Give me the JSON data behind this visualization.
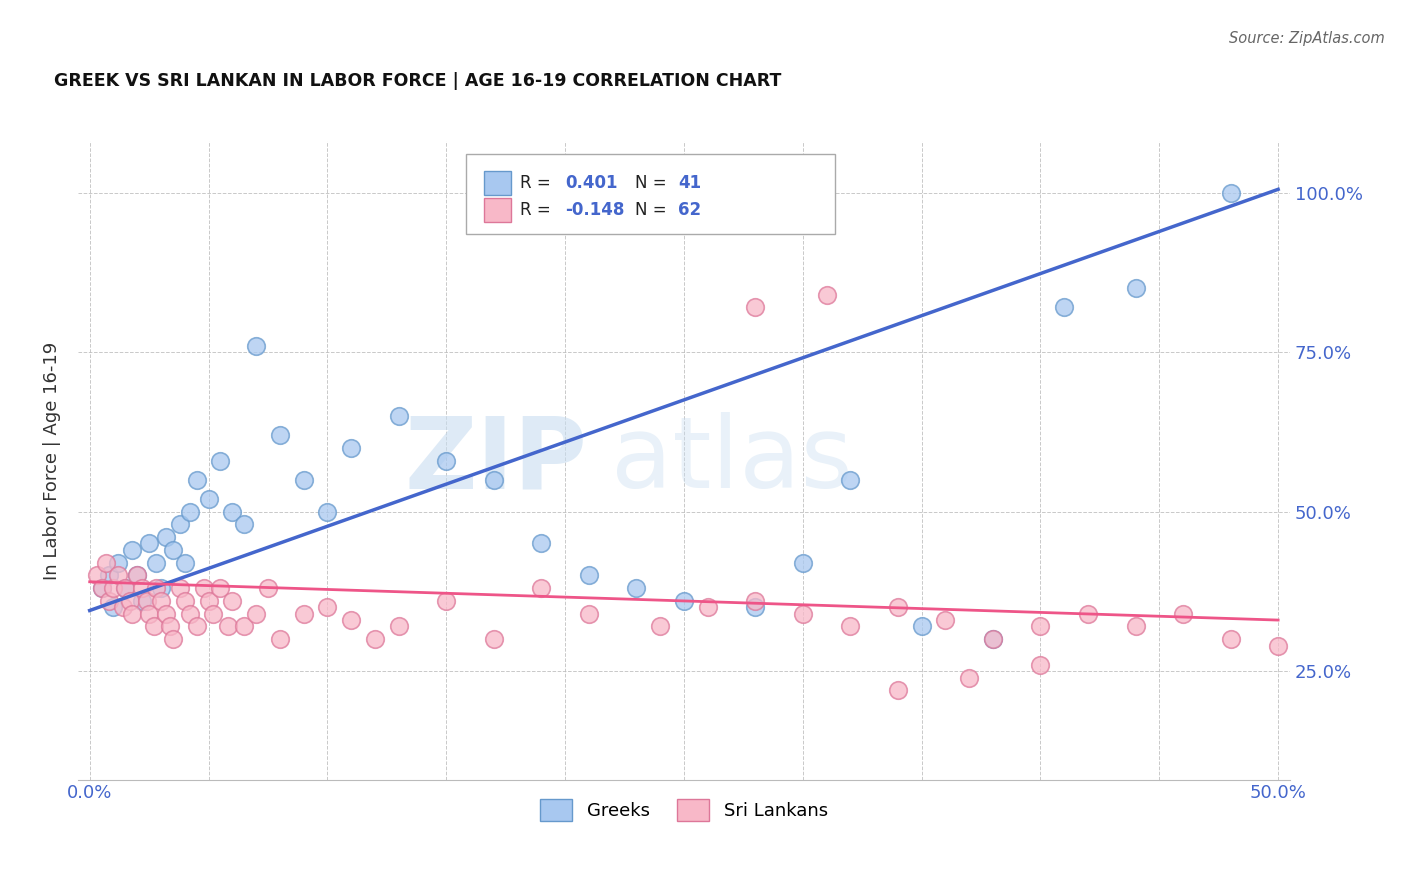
{
  "title": "GREEK VS SRI LANKAN IN LABOR FORCE | AGE 16-19 CORRELATION CHART",
  "source": "Source: ZipAtlas.com",
  "ylabel_label": "In Labor Force | Age 16-19",
  "xlim": [
    -0.005,
    0.505
  ],
  "ylim": [
    0.08,
    1.08
  ],
  "xticks": [
    0.0,
    0.05,
    0.1,
    0.15,
    0.2,
    0.25,
    0.3,
    0.35,
    0.4,
    0.45,
    0.5
  ],
  "xtick_labels": [
    "0.0%",
    "",
    "",
    "",
    "",
    "",
    "",
    "",
    "",
    "",
    "50.0%"
  ],
  "ytick_positions": [
    0.25,
    0.5,
    0.75,
    1.0
  ],
  "ytick_labels": [
    "25.0%",
    "50.0%",
    "75.0%",
    "100.0%"
  ],
  "greek_color": "#a8c8f0",
  "greek_edge_color": "#6699cc",
  "sri_color": "#f8b8c8",
  "sri_edge_color": "#dd7799",
  "blue_line_color": "#4466cc",
  "pink_line_color": "#ee5588",
  "R_greek": 0.401,
  "N_greek": 41,
  "R_sri": -0.148,
  "N_sri": 62,
  "legend_color": "#4466cc",
  "greek_x": [
    0.005,
    0.008,
    0.01,
    0.012,
    0.015,
    0.018,
    0.02,
    0.022,
    0.025,
    0.028,
    0.03,
    0.032,
    0.035,
    0.038,
    0.04,
    0.042,
    0.045,
    0.05,
    0.055,
    0.06,
    0.065,
    0.07,
    0.08,
    0.09,
    0.1,
    0.11,
    0.13,
    0.15,
    0.17,
    0.19,
    0.21,
    0.23,
    0.25,
    0.28,
    0.3,
    0.32,
    0.35,
    0.38,
    0.41,
    0.44,
    0.48
  ],
  "greek_y": [
    0.38,
    0.4,
    0.35,
    0.42,
    0.38,
    0.44,
    0.4,
    0.36,
    0.45,
    0.42,
    0.38,
    0.46,
    0.44,
    0.48,
    0.42,
    0.5,
    0.55,
    0.52,
    0.58,
    0.5,
    0.48,
    0.76,
    0.62,
    0.55,
    0.5,
    0.6,
    0.65,
    0.58,
    0.55,
    0.45,
    0.4,
    0.38,
    0.36,
    0.35,
    0.42,
    0.55,
    0.32,
    0.3,
    0.82,
    0.85,
    1.0
  ],
  "sri_x": [
    0.003,
    0.005,
    0.007,
    0.008,
    0.01,
    0.012,
    0.014,
    0.015,
    0.017,
    0.018,
    0.02,
    0.022,
    0.024,
    0.025,
    0.027,
    0.028,
    0.03,
    0.032,
    0.034,
    0.035,
    0.038,
    0.04,
    0.042,
    0.045,
    0.048,
    0.05,
    0.052,
    0.055,
    0.058,
    0.06,
    0.065,
    0.07,
    0.075,
    0.08,
    0.09,
    0.1,
    0.11,
    0.12,
    0.13,
    0.15,
    0.17,
    0.19,
    0.21,
    0.24,
    0.26,
    0.28,
    0.3,
    0.32,
    0.34,
    0.36,
    0.38,
    0.4,
    0.42,
    0.44,
    0.46,
    0.48,
    0.5,
    0.28,
    0.31,
    0.34,
    0.37,
    0.4
  ],
  "sri_y": [
    0.4,
    0.38,
    0.42,
    0.36,
    0.38,
    0.4,
    0.35,
    0.38,
    0.36,
    0.34,
    0.4,
    0.38,
    0.36,
    0.34,
    0.32,
    0.38,
    0.36,
    0.34,
    0.32,
    0.3,
    0.38,
    0.36,
    0.34,
    0.32,
    0.38,
    0.36,
    0.34,
    0.38,
    0.32,
    0.36,
    0.32,
    0.34,
    0.38,
    0.3,
    0.34,
    0.35,
    0.33,
    0.3,
    0.32,
    0.36,
    0.3,
    0.38,
    0.34,
    0.32,
    0.35,
    0.36,
    0.34,
    0.32,
    0.35,
    0.33,
    0.3,
    0.32,
    0.34,
    0.32,
    0.34,
    0.3,
    0.29,
    0.82,
    0.84,
    0.22,
    0.24,
    0.26
  ]
}
